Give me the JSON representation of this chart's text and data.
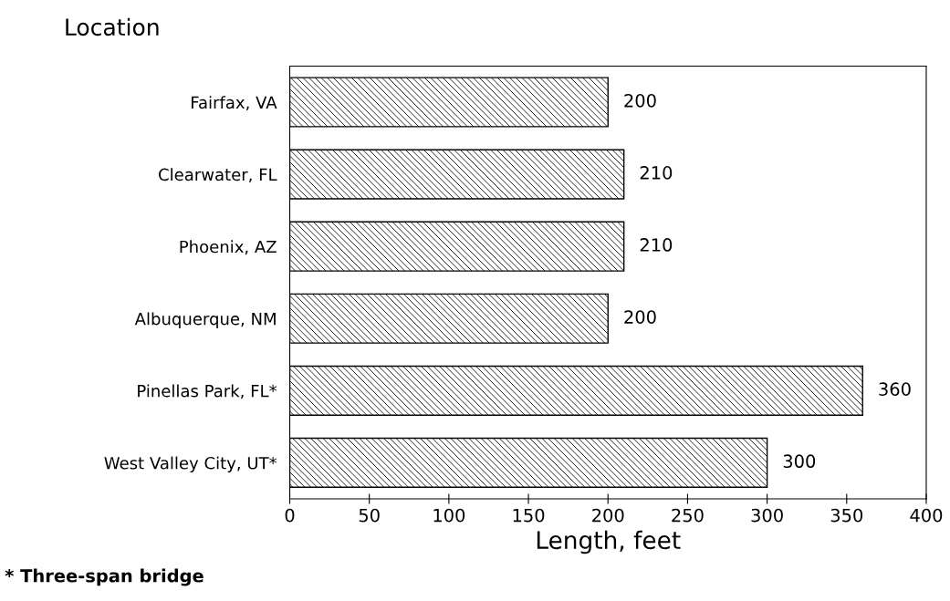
{
  "chart_data": {
    "type": "bar",
    "orientation": "horizontal",
    "categories": [
      "Fairfax, VA",
      "Clearwater, FL",
      "Phoenix, AZ",
      "Albuquerque, NM",
      "Pinellas Park, FL*",
      "West Valley City, UT*"
    ],
    "values": [
      200,
      210,
      210,
      200,
      360,
      300
    ],
    "color": "#000000",
    "xlim": [
      0,
      400
    ],
    "xticks": [
      0,
      50,
      100,
      150,
      200,
      250,
      300,
      350,
      400
    ],
    "xlabel": "Length, feet",
    "ylabel": "Location",
    "data_labels": true,
    "grid": false,
    "annotations": [
      "* Three-span bridge"
    ]
  }
}
